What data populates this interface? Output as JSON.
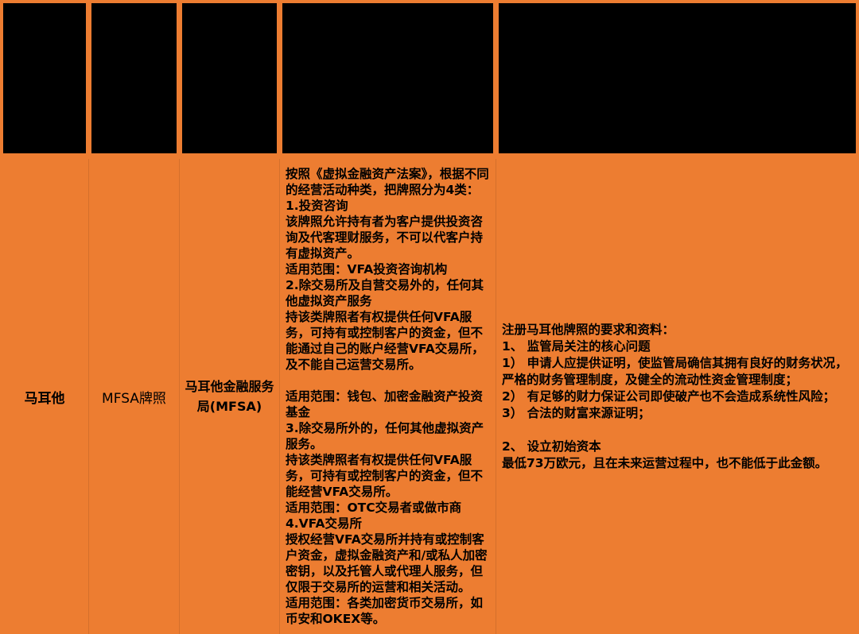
{
  "colors": {
    "table_orange": "#ED7D31",
    "header_cell_black": "#000000",
    "text_black": "#000000",
    "gridline_faint": "rgba(0,0,0,0.10)"
  },
  "table": {
    "header": {
      "cells": [
        "",
        "",
        "",
        "",
        ""
      ]
    },
    "row": {
      "country": "马耳他",
      "license_name": "MFSA牌照",
      "regulator": "马耳他金融服务局(MFSA)",
      "license_categories": "按照《虚拟金融资产法案》，根据不同的经营活动种类，把牌照分为4类：\n1.投资咨询\n该牌照允许持有者为客户提供投资咨询及代客理财服务，不可以代客户持有虚拟资产。\n适用范围：VFA投资咨询机构\n2.除交易所及自营交易外的，任何其他虚拟资产服务\n持该类牌照者有权提供任何VFA服务，可持有或控制客户的资金，但不能通过自己的账户经营VFA交易所，及不能自己运营交易所。\n\n适用范围：钱包、加密金融资产投资基金\n3.除交易所外的，任何其他虚拟资产服务。\n持该类牌照者有权提供任何VFA服务，可持有或控制客户的资金，但不能经营VFA交易所。\n适用范围：OTC交易者或做市商\n4.VFA交易所\n授权经营VFA交易所并持有或控制客户资金，虚拟金融资产和/或私人加密密钥，以及托管人或代理人服务，但仅限于交易所的运营和相关活动。\n适用范围：各类加密货币交易所，如币安和OKEX等。",
      "requirements": "注册马耳他牌照的要求和资料：\n1、 监管局关注的核心问题\n1） 申请人应提供证明，使监管局确信其拥有良好的财务状况，严格的财务管理制度，及健全的流动性资金管理制度；\n2） 有足够的财力保证公司即使破产也不会造成系统性风险；\n3） 合法的财富来源证明；\n\n2、 设立初始资本\n最低73万欧元，且在未来运营过程中，也不能低于此金额。"
    }
  }
}
